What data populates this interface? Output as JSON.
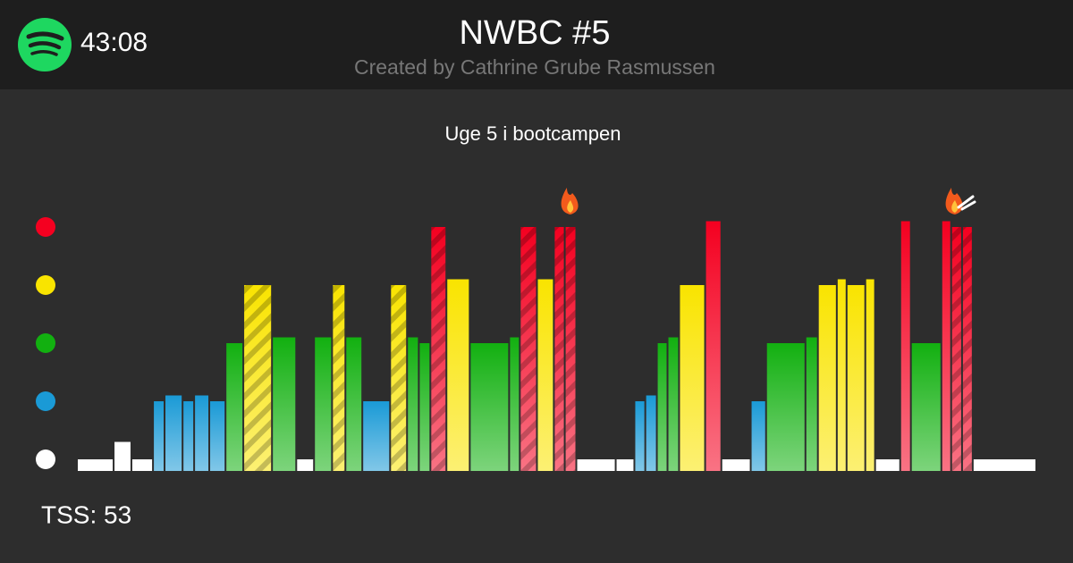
{
  "header": {
    "time": "43:08",
    "title": "NWBC #5",
    "subtitle": "Created by Cathrine Grube Rasmussen"
  },
  "chart_data": {
    "type": "bar",
    "title": "Uge 5 i bootcampen",
    "x": [
      0,
      1.65,
      2.45,
      3.42,
      3.94,
      4.75,
      5.27,
      5.95,
      6.68,
      7.48,
      8.77,
      9.86,
      10.66,
      11.47,
      12.07,
      12.83,
      14.08,
      14.84,
      15.37,
      15.89,
      16.61,
      17.66,
      19.43,
      19.91,
      20.68,
      21.44,
      21.93,
      22.45,
      24.22,
      25.06,
      25.55,
      26.07,
      26.55,
      27.07,
      28.24,
      28.97,
      30.29,
      30.98,
      32.75,
      33.31,
      34.16,
      34.6,
      35.44,
      35.88,
      37.01,
      37.49,
      38.86,
      39.3,
      39.79,
      40.27
    ],
    "values": [
      1,
      1.3,
      1,
      2,
      2.1,
      2,
      2.1,
      2,
      3,
      4,
      3.1,
      1,
      3.1,
      4,
      3.1,
      2,
      4,
      3.1,
      3,
      5,
      4.1,
      3,
      3.1,
      5,
      4.1,
      5,
      5,
      1,
      1,
      2,
      2.1,
      3,
      3.1,
      4,
      5.1,
      1,
      2,
      3,
      3.1,
      4,
      4.1,
      4,
      4.1,
      1,
      5.1,
      3,
      5.1,
      5,
      5,
      1
    ],
    "striped": [
      false,
      false,
      false,
      false,
      false,
      false,
      false,
      false,
      false,
      true,
      false,
      false,
      false,
      true,
      false,
      false,
      true,
      false,
      false,
      true,
      false,
      false,
      false,
      true,
      false,
      true,
      true,
      false,
      false,
      false,
      false,
      false,
      false,
      false,
      false,
      false,
      false,
      false,
      false,
      false,
      false,
      false,
      false,
      false,
      false,
      false,
      false,
      true,
      true,
      false
    ],
    "xlim": [
      0,
      43.13
    ],
    "ylim": [
      0.8,
      5.2
    ],
    "zones": [
      1,
      2,
      3,
      4,
      5
    ],
    "zone_colors": [
      "#ffffff",
      "#1a9ad6",
      "#12b010",
      "#f9e400",
      "#f40020"
    ]
  },
  "footer": {
    "tss": "TSS: 53"
  }
}
